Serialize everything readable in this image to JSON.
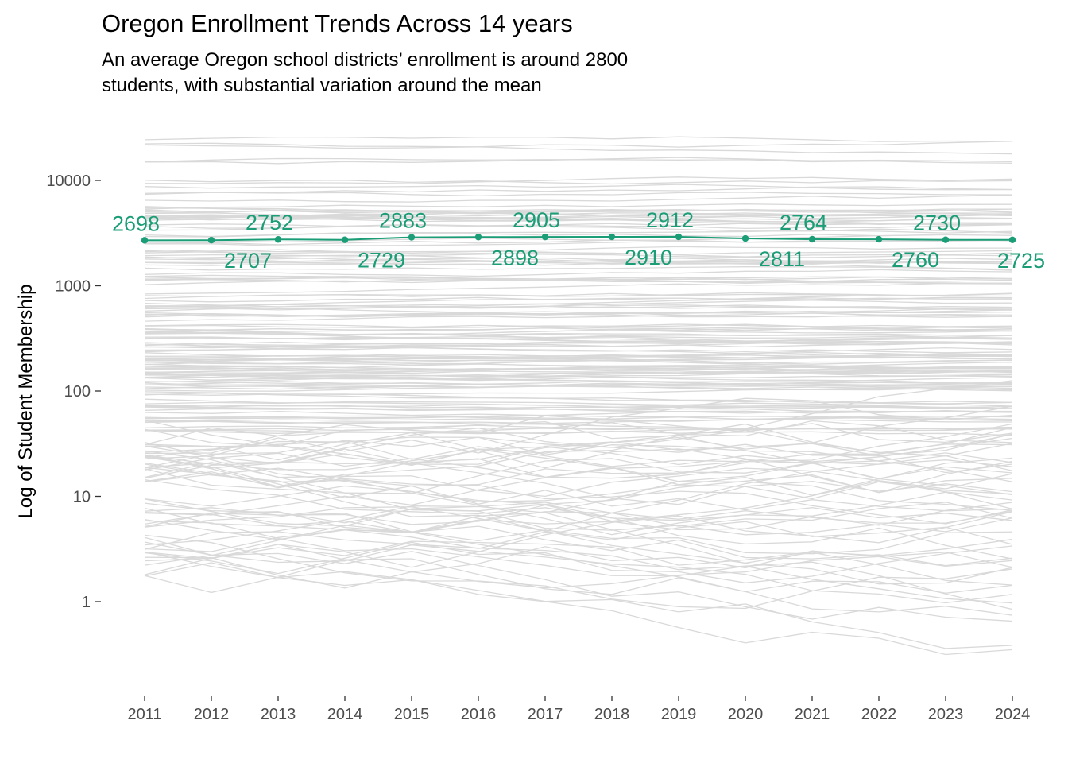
{
  "chart_data": {
    "type": "line",
    "title": "Oregon Enrollment Trends Across 14 years",
    "subtitle_line1": "An average Oregon school districts’ enrollment is around 2800",
    "subtitle_line2": "students, with substantial variation around the mean",
    "xlabel": "",
    "ylabel": "Log of Student Membership",
    "y_scale": "log10",
    "ylim": [
      0.14,
      55000
    ],
    "x": [
      2011,
      2012,
      2013,
      2014,
      2015,
      2016,
      2017,
      2018,
      2019,
      2020,
      2021,
      2022,
      2023,
      2024
    ],
    "x_tick_labels": [
      "2011",
      "2012",
      "2013",
      "2014",
      "2015",
      "2016",
      "2017",
      "2018",
      "2019",
      "2020",
      "2021",
      "2022",
      "2023",
      "2024"
    ],
    "y_ticks": [
      1,
      10,
      100,
      1000,
      10000
    ],
    "y_tick_labels": [
      "1",
      "10",
      "100",
      "1000",
      "10000"
    ],
    "grid": false,
    "legend": "none",
    "mean_series": {
      "values": [
        2698,
        2707,
        2752,
        2729,
        2883,
        2898,
        2905,
        2910,
        2912,
        2811,
        2764,
        2760,
        2730,
        2725
      ],
      "data_labels": [
        "2698",
        "2707",
        "2752",
        "2729",
        "2883",
        "2898",
        "2905",
        "2910",
        "2912",
        "2811",
        "2764",
        "2760",
        "2730",
        "2725"
      ],
      "color": "#1b9e77"
    },
    "background_series": {
      "description_count": 200,
      "color": "#d9d9d9"
    }
  }
}
